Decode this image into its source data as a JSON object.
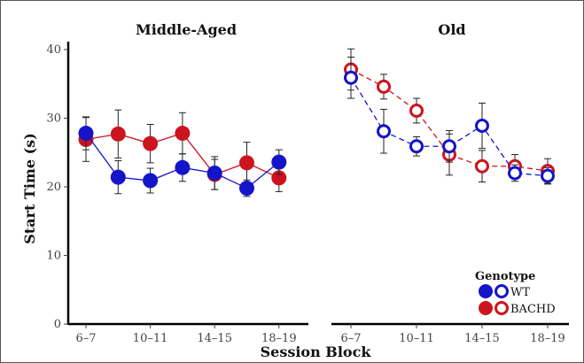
{
  "chart_data": {
    "type": "line",
    "x_axis_title": "Session Block",
    "y_axis_title": "Start Time (s)",
    "ylim": [
      0,
      40
    ],
    "y_ticks": [
      0,
      10,
      20,
      30,
      40
    ],
    "x_tick_labels": [
      "6–7",
      "10–11",
      "14–15",
      "18–19"
    ],
    "x_blocks": [
      "6–7",
      "8–9",
      "10–11",
      "12–13",
      "14–15",
      "16–17",
      "18–19"
    ],
    "grid": false,
    "legend": {
      "title": "Genotype",
      "position": "bottom-right",
      "entries": [
        "WT",
        "BACHD"
      ]
    },
    "colors": {
      "WT": "#1414c8",
      "BACHD": "#cc141e"
    },
    "panels": [
      {
        "title": "Middle-Aged",
        "marker_style": "filled",
        "line_style": "solid",
        "series": [
          {
            "genotype": "WT",
            "values": [
              27.8,
              21.4,
              20.9,
              22.8,
              22.0,
              19.8,
              23.6
            ],
            "error": [
              2.4,
              2.4,
              1.8,
              2.0,
              2.4,
              1.2,
              1.8
            ]
          },
          {
            "genotype": "BACHD",
            "values": [
              26.9,
              27.7,
              26.3,
              27.8,
              21.8,
              23.5,
              21.3
            ],
            "error": [
              3.2,
              3.5,
              2.8,
              3.0,
              2.2,
              3.0,
              2.0
            ]
          }
        ]
      },
      {
        "title": "Old",
        "marker_style": "open",
        "line_style": "dashed",
        "series": [
          {
            "genotype": "WT",
            "values": [
              35.9,
              28.1,
              25.9,
              25.9,
              28.9,
              22.0,
              21.6
            ],
            "error": [
              3.0,
              3.2,
              1.4,
              2.3,
              3.3,
              1.2,
              1.2
            ]
          },
          {
            "genotype": "BACHD",
            "values": [
              37.1,
              34.6,
              31.1,
              24.7,
              23.0,
              23.0,
              22.3
            ],
            "error": [
              3.0,
              1.8,
              1.8,
              3.0,
              2.3,
              1.7,
              1.8
            ]
          }
        ]
      }
    ]
  }
}
